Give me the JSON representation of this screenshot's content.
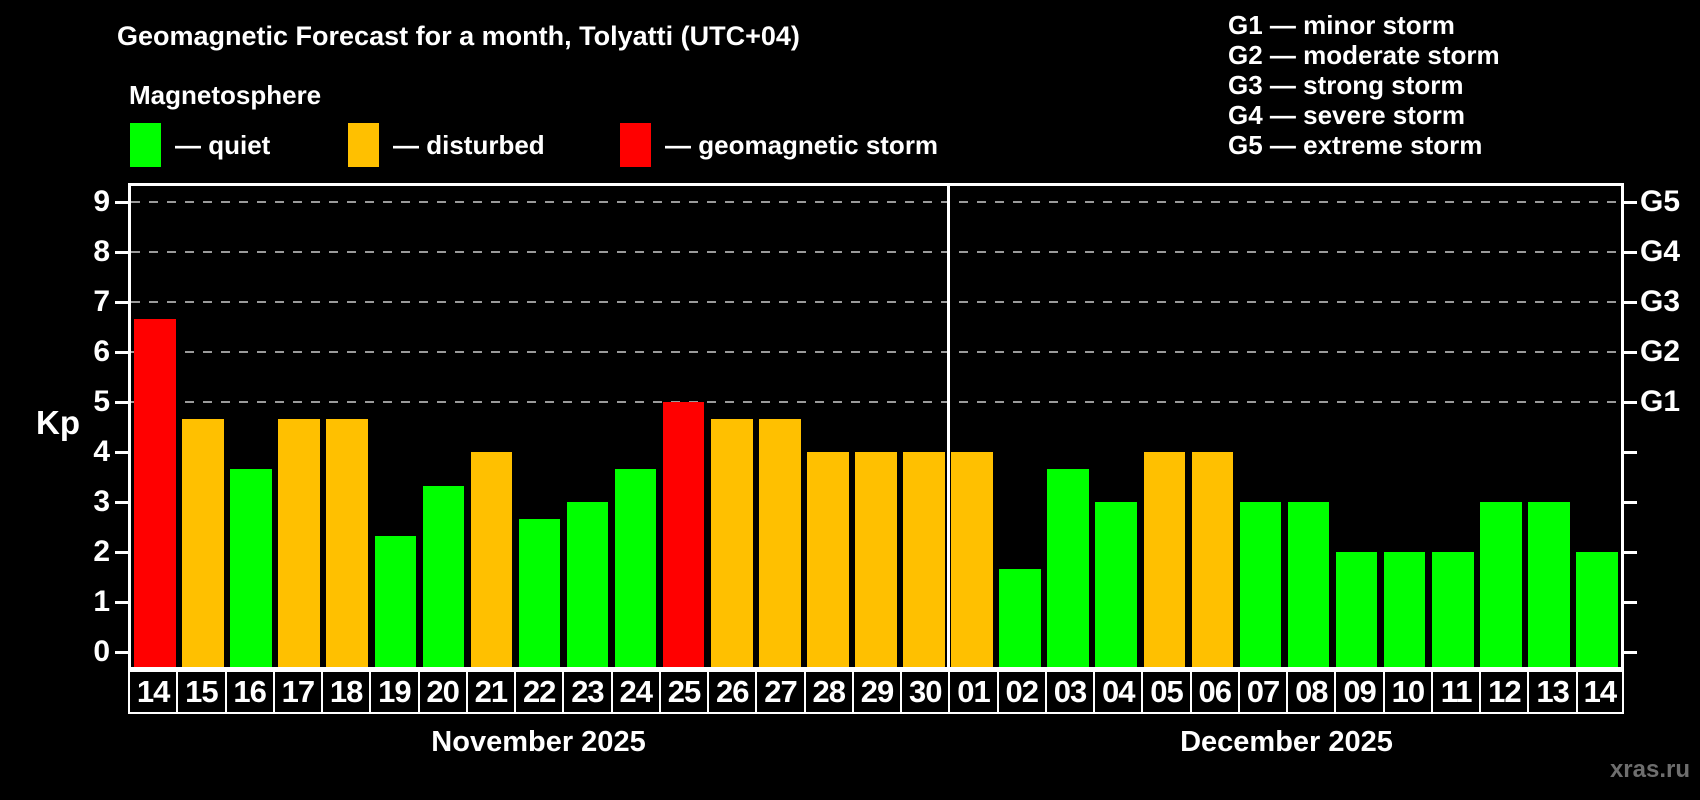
{
  "title": "Geomagnetic Forecast for a month, Tolyatti (UTC+04)",
  "subtitle": "Magnetosphere",
  "legend": {
    "items": [
      {
        "level": "quiet",
        "label": "— quiet"
      },
      {
        "level": "disturbed",
        "label": "— disturbed"
      },
      {
        "level": "storm",
        "label": "— geomagnetic storm"
      }
    ]
  },
  "g_legend": [
    "G1 — minor storm",
    "G2 — moderate storm",
    "G3 — strong storm",
    "G4 — severe storm",
    "G5 — extreme storm"
  ],
  "watermark": "xras.ru",
  "colors": {
    "quiet": "#00ff00",
    "disturbed": "#ffc000",
    "storm": "#ff0000",
    "background": "#000000",
    "grid": "#9a9a9a",
    "axis": "#ffffff"
  },
  "chart_data": {
    "type": "bar",
    "title": "Geomagnetic Forecast for a month, Tolyatti (UTC+04)",
    "ylabel": "Kp",
    "ylim": [
      0,
      9.7
    ],
    "yticks": [
      0,
      1,
      2,
      3,
      4,
      5,
      6,
      7,
      8,
      9
    ],
    "grid": "horizontal dashed lines at Kp 5,6,7,8,9",
    "legend_position": "top",
    "right_axis": [
      {
        "kp": 5,
        "label": "G1"
      },
      {
        "kp": 6,
        "label": "G2"
      },
      {
        "kp": 7,
        "label": "G3"
      },
      {
        "kp": 8,
        "label": "G4"
      },
      {
        "kp": 9,
        "label": "G5"
      }
    ],
    "months": [
      {
        "label": "November 2025",
        "days": [
          {
            "day": "14",
            "kp": 6.67,
            "level": "storm"
          },
          {
            "day": "15",
            "kp": 4.67,
            "level": "disturbed"
          },
          {
            "day": "16",
            "kp": 3.67,
            "level": "quiet"
          },
          {
            "day": "17",
            "kp": 4.67,
            "level": "disturbed"
          },
          {
            "day": "18",
            "kp": 4.67,
            "level": "disturbed"
          },
          {
            "day": "19",
            "kp": 2.33,
            "level": "quiet"
          },
          {
            "day": "20",
            "kp": 3.33,
            "level": "quiet"
          },
          {
            "day": "21",
            "kp": 4,
            "level": "disturbed"
          },
          {
            "day": "22",
            "kp": 2.67,
            "level": "quiet"
          },
          {
            "day": "23",
            "kp": 3,
            "level": "quiet"
          },
          {
            "day": "24",
            "kp": 3.67,
            "level": "quiet"
          },
          {
            "day": "25",
            "kp": 5,
            "level": "storm"
          },
          {
            "day": "26",
            "kp": 4.67,
            "level": "disturbed"
          },
          {
            "day": "27",
            "kp": 4.67,
            "level": "disturbed"
          },
          {
            "day": "28",
            "kp": 4,
            "level": "disturbed"
          },
          {
            "day": "29",
            "kp": 4,
            "level": "disturbed"
          },
          {
            "day": "30",
            "kp": 4,
            "level": "disturbed"
          }
        ]
      },
      {
        "label": "December 2025",
        "days": [
          {
            "day": "01",
            "kp": 4,
            "level": "disturbed"
          },
          {
            "day": "02",
            "kp": 1.67,
            "level": "quiet"
          },
          {
            "day": "03",
            "kp": 3.67,
            "level": "quiet"
          },
          {
            "day": "04",
            "kp": 3,
            "level": "quiet"
          },
          {
            "day": "05",
            "kp": 4,
            "level": "disturbed"
          },
          {
            "day": "06",
            "kp": 4,
            "level": "disturbed"
          },
          {
            "day": "07",
            "kp": 3,
            "level": "quiet"
          },
          {
            "day": "08",
            "kp": 3,
            "level": "quiet"
          },
          {
            "day": "09",
            "kp": 2,
            "level": "quiet"
          },
          {
            "day": "10",
            "kp": 2,
            "level": "quiet"
          },
          {
            "day": "11",
            "kp": 2,
            "level": "quiet"
          },
          {
            "day": "12",
            "kp": 3,
            "level": "quiet"
          },
          {
            "day": "13",
            "kp": 3,
            "level": "quiet"
          },
          {
            "day": "14",
            "kp": 2,
            "level": "quiet"
          }
        ]
      }
    ]
  }
}
